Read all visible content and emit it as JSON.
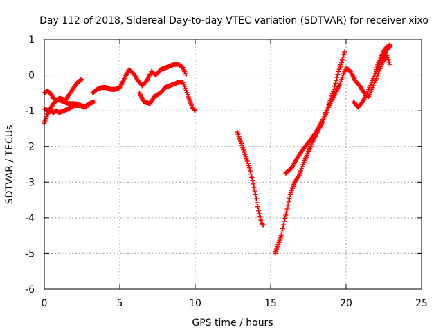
{
  "chart_data": {
    "type": "scatter",
    "title": "Day 112 of 2018, Sidereal Day-to-day VTEC variation (SDTVAR) for receiver xixo",
    "xlabel": "GPS time / hours",
    "ylabel": "SDTVAR / TECUs",
    "xlim": [
      0,
      25
    ],
    "ylim": [
      -6,
      1
    ],
    "xticks": [
      0,
      5,
      10,
      15,
      20,
      25
    ],
    "yticks": [
      -6,
      -5,
      -4,
      -3,
      -2,
      -1,
      0,
      1
    ],
    "grid": true,
    "legend": "none",
    "marker": "plus",
    "marker_color": "#ff0000",
    "tracks": [
      {
        "x": [
          0.0,
          0.2,
          0.4,
          0.6,
          0.8,
          1.0,
          1.3,
          1.6,
          2.0,
          2.4,
          2.6,
          3.0,
          3.3
        ],
        "y": [
          -1.35,
          -1.1,
          -1.0,
          -1.05,
          -1.0,
          -1.05,
          -1.0,
          -0.95,
          -0.85,
          -0.85,
          -0.9,
          -0.8,
          -0.75
        ]
      },
      {
        "x": [
          0.0,
          0.3,
          0.6,
          1.0,
          1.4,
          1.8,
          2.2,
          2.5
        ],
        "y": [
          -0.95,
          -1.0,
          -0.8,
          -0.65,
          -0.7,
          -0.45,
          -0.2,
          -0.12
        ]
      },
      {
        "x": [
          0.0,
          0.2,
          0.4,
          0.6,
          0.8,
          1.0,
          1.3,
          1.6,
          2.0,
          2.4,
          2.8
        ],
        "y": [
          -0.5,
          -0.45,
          -0.5,
          -0.65,
          -0.7,
          -0.7,
          -0.75,
          -0.8,
          -0.8,
          -0.85,
          -0.9
        ]
      },
      {
        "x": [
          3.2,
          3.5,
          3.8,
          4.1,
          4.4,
          4.7,
          5.0,
          5.3,
          5.6,
          5.9,
          6.2,
          6.5,
          6.8,
          7.1,
          7.4,
          7.7,
          8.0,
          8.3,
          8.6,
          8.9,
          9.2,
          9.4
        ],
        "y": [
          -0.5,
          -0.4,
          -0.35,
          -0.35,
          -0.4,
          -0.4,
          -0.35,
          -0.1,
          0.15,
          0.05,
          -0.15,
          -0.3,
          -0.15,
          0.1,
          0.0,
          0.15,
          0.2,
          0.25,
          0.3,
          0.3,
          0.2,
          0.0
        ]
      },
      {
        "x": [
          6.3,
          6.6,
          7.0,
          7.3,
          7.7,
          8.0,
          8.3,
          8.6,
          8.9,
          9.2,
          9.5,
          9.8,
          10.0
        ],
        "y": [
          -0.5,
          -0.75,
          -0.8,
          -0.6,
          -0.5,
          -0.35,
          -0.3,
          -0.25,
          -0.2,
          -0.2,
          -0.55,
          -0.9,
          -1.0
        ]
      },
      {
        "x": [
          12.8,
          13.0,
          13.2,
          13.4,
          13.6,
          13.8,
          14.0,
          14.2,
          14.4,
          14.5
        ],
        "y": [
          -1.6,
          -1.85,
          -2.1,
          -2.35,
          -2.6,
          -2.95,
          -3.35,
          -3.8,
          -4.15,
          -4.2
        ]
      },
      {
        "x": [
          15.3,
          15.5,
          15.7,
          15.9,
          16.1,
          16.3,
          16.6,
          16.9,
          17.2,
          17.5,
          17.8,
          18.1,
          18.4,
          18.7,
          19.0,
          19.3,
          19.6,
          19.8,
          20.0,
          20.3,
          20.6,
          20.9,
          21.2
        ],
        "y": [
          -5.0,
          -4.75,
          -4.5,
          -4.1,
          -3.75,
          -3.35,
          -3.0,
          -2.8,
          -2.45,
          -2.15,
          -1.85,
          -1.6,
          -1.35,
          -1.05,
          -0.75,
          -0.5,
          -0.25,
          0.0,
          0.2,
          0.1,
          -0.15,
          -0.3,
          -0.5
        ]
      },
      {
        "x": [
          16.0,
          16.4,
          16.8,
          17.2,
          17.6,
          18.0,
          18.4,
          18.8,
          19.2,
          19.5,
          19.7,
          19.9
        ],
        "y": [
          -2.75,
          -2.6,
          -2.3,
          -2.05,
          -1.85,
          -1.6,
          -1.3,
          -0.9,
          -0.4,
          0.1,
          0.35,
          0.65
        ]
      },
      {
        "x": [
          20.5,
          20.8,
          21.1,
          21.4,
          21.7,
          22.0,
          22.3,
          22.6,
          22.9
        ],
        "y": [
          -0.75,
          -0.9,
          -0.75,
          -0.5,
          -0.2,
          0.1,
          0.4,
          0.65,
          0.8
        ]
      },
      {
        "x": [
          21.2,
          21.5,
          21.8,
          22.1,
          22.4,
          22.7,
          22.9
        ],
        "y": [
          -0.5,
          -0.6,
          -0.3,
          0.0,
          0.35,
          0.55,
          0.3
        ]
      },
      {
        "x": [
          22.0,
          22.3,
          22.6,
          22.9
        ],
        "y": [
          0.2,
          0.5,
          0.75,
          0.85
        ]
      }
    ]
  }
}
